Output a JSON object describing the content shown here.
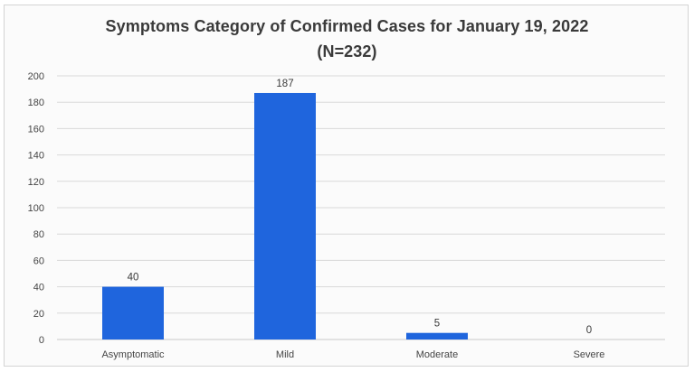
{
  "chart_data": {
    "type": "bar",
    "title": "Symptoms Category of Confirmed Cases for  January 19, 2022",
    "subtitle": "(N=232)",
    "categories": [
      "Asymptomatic",
      "Mild",
      "Moderate",
      "Severe"
    ],
    "values": [
      40,
      187,
      5,
      0
    ],
    "data_labels": [
      "40",
      "187",
      "5",
      "0"
    ],
    "ylim": [
      0,
      200
    ],
    "yticks": [
      0,
      20,
      40,
      60,
      80,
      100,
      120,
      140,
      160,
      180,
      200
    ],
    "xlabel": "",
    "ylabel": "",
    "grid": true,
    "legend": "none",
    "bar_color": "#1f65dd",
    "grid_color": "#d9d9d9"
  }
}
